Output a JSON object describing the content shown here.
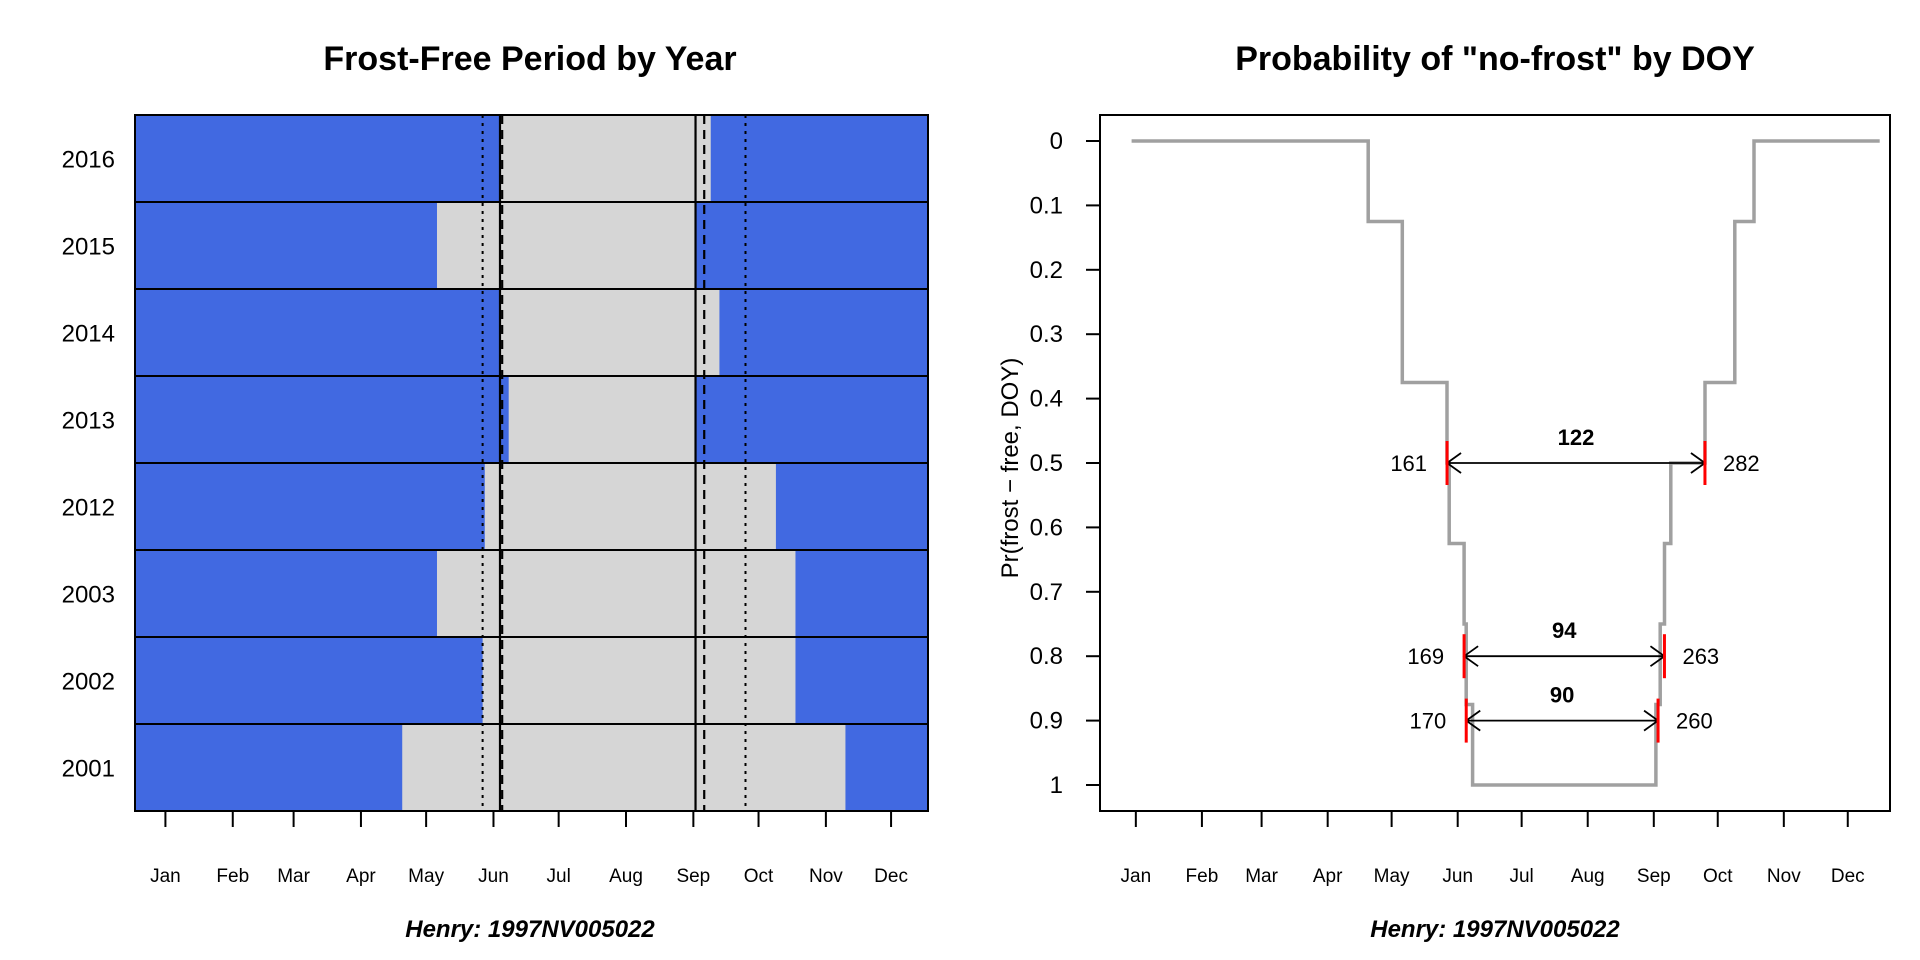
{
  "chart_data": [
    {
      "type": "bar",
      "title": "Frost-Free Period by Year",
      "caption": "Henry: 1997NV005022",
      "month_labels": [
        "Jan",
        "Feb",
        "Mar",
        "Apr",
        "May",
        "Jun",
        "Jul",
        "Aug",
        "Sep",
        "Oct",
        "Nov",
        "Dec"
      ],
      "month_doy": [
        15,
        46,
        74,
        105,
        135,
        166,
        196,
        227,
        258,
        288,
        319,
        349
      ],
      "xlim": [
        1,
        366
      ],
      "colors": {
        "frost": "#4169E1",
        "frost_free": "#D6D6D6"
      },
      "years": [
        {
          "label": "2016",
          "start": 169,
          "end": 266
        },
        {
          "label": "2015",
          "start": 140,
          "end": 259
        },
        {
          "label": "2014",
          "start": 169,
          "end": 270
        },
        {
          "label": "2013",
          "start": 173,
          "end": 259
        },
        {
          "label": "2012",
          "start": 162,
          "end": 296
        },
        {
          "label": "2003",
          "start": 140,
          "end": 305
        },
        {
          "label": "2002",
          "start": 161,
          "end": 305
        },
        {
          "label": "2001",
          "start": 124,
          "end": 328
        }
      ],
      "ref_lines": [
        {
          "doy": 161,
          "style": "dotted"
        },
        {
          "doy": 169,
          "style": "solid"
        },
        {
          "doy": 170,
          "style": "dashed"
        },
        {
          "doy": 259,
          "style": "solid"
        },
        {
          "doy": 263,
          "style": "dashed"
        },
        {
          "doy": 282,
          "style": "dotted"
        }
      ]
    },
    {
      "type": "line",
      "title": "Probability of \"no-frost\" by DOY",
      "caption": "Henry: 1997NV005022",
      "ylabel": "Pr(frost − free, DOY)",
      "yticks": [
        "0",
        "0.1",
        "0.2",
        "0.3",
        "0.4",
        "0.5",
        "0.6",
        "0.7",
        "0.8",
        "0.9",
        "1"
      ],
      "ylim": [
        0,
        1
      ],
      "y_reversed": true,
      "xlim": [
        1,
        366
      ],
      "month_labels": [
        "Jan",
        "Feb",
        "Mar",
        "Apr",
        "May",
        "Jun",
        "Jul",
        "Aug",
        "Sep",
        "Oct",
        "Nov",
        "Dec"
      ],
      "month_doy": [
        15,
        46,
        74,
        105,
        135,
        166,
        196,
        227,
        258,
        288,
        319,
        349
      ],
      "line_color": "#A0A0A0",
      "series": {
        "x": [
          13,
          124,
          124,
          140,
          140,
          161,
          161,
          162,
          162,
          169,
          169,
          170,
          170,
          173,
          173,
          259,
          259,
          261,
          261,
          263,
          263,
          266,
          266,
          270,
          270,
          282,
          282,
          296,
          296,
          305,
          305,
          328,
          328,
          364
        ],
        "y": [
          0,
          0,
          0.125,
          0.125,
          0.375,
          0.375,
          0.5,
          0.5,
          0.625,
          0.625,
          0.75,
          0.75,
          0.875,
          0.875,
          1,
          1,
          0.875,
          0.875,
          0.75,
          0.75,
          0.625,
          0.625,
          0.5,
          0.5,
          0.5,
          0.5,
          0.375,
          0.375,
          0.125,
          0.125,
          0,
          0,
          0,
          0
        ]
      },
      "intervals": [
        {
          "prob": 0.5,
          "start": 161,
          "end": 282,
          "length": "122",
          "start_label": "161",
          "end_label": "282"
        },
        {
          "prob": 0.8,
          "start": 169,
          "end": 263,
          "length": "94",
          "start_label": "169",
          "end_label": "263"
        },
        {
          "prob": 0.9,
          "start": 170,
          "end": 260,
          "length": "90",
          "start_label": "170",
          "end_label": "260"
        }
      ]
    }
  ]
}
